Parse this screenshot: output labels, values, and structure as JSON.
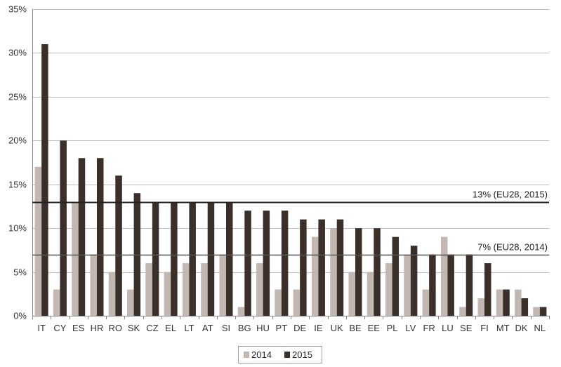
{
  "chart_data": {
    "type": "bar",
    "title": "",
    "xlabel": "",
    "ylabel": "",
    "ylim": [
      0,
      35
    ],
    "y_ticks": [
      "0%",
      "5%",
      "10%",
      "15%",
      "20%",
      "25%",
      "30%",
      "35%"
    ],
    "y_tick_values": [
      0,
      5,
      10,
      15,
      20,
      25,
      30,
      35
    ],
    "grid": true,
    "legend_position": "bottom-center",
    "categories": [
      "IT",
      "CY",
      "ES",
      "HR",
      "RO",
      "SK",
      "CZ",
      "EL",
      "LT",
      "AT",
      "SI",
      "BG",
      "HU",
      "PT",
      "DE",
      "IE",
      "UK",
      "BE",
      "EE",
      "PL",
      "LV",
      "FR",
      "LU",
      "SE",
      "FI",
      "MT",
      "DK",
      "NL"
    ],
    "series": [
      {
        "name": "2014",
        "color": "#c2b8b1",
        "values": [
          17,
          3,
          13,
          7,
          5,
          3,
          6,
          5,
          6,
          6,
          7,
          1,
          6,
          3,
          3,
          9,
          10,
          5,
          5,
          6,
          7,
          3,
          9,
          1,
          2,
          3,
          3,
          1
        ]
      },
      {
        "name": "2015",
        "color": "#3b3029",
        "values": [
          31,
          20,
          18,
          18,
          16,
          14,
          13,
          13,
          13,
          13,
          13,
          12,
          12,
          12,
          11,
          11,
          11,
          10,
          10,
          9,
          8,
          7,
          7,
          7,
          6,
          3,
          2,
          1
        ]
      }
    ],
    "reference_lines": [
      {
        "value": 13,
        "label": "13% (EU28, 2015)",
        "color": "#222222"
      },
      {
        "value": 7,
        "label": "7% (EU28, 2014)",
        "color": "#555555"
      }
    ]
  }
}
